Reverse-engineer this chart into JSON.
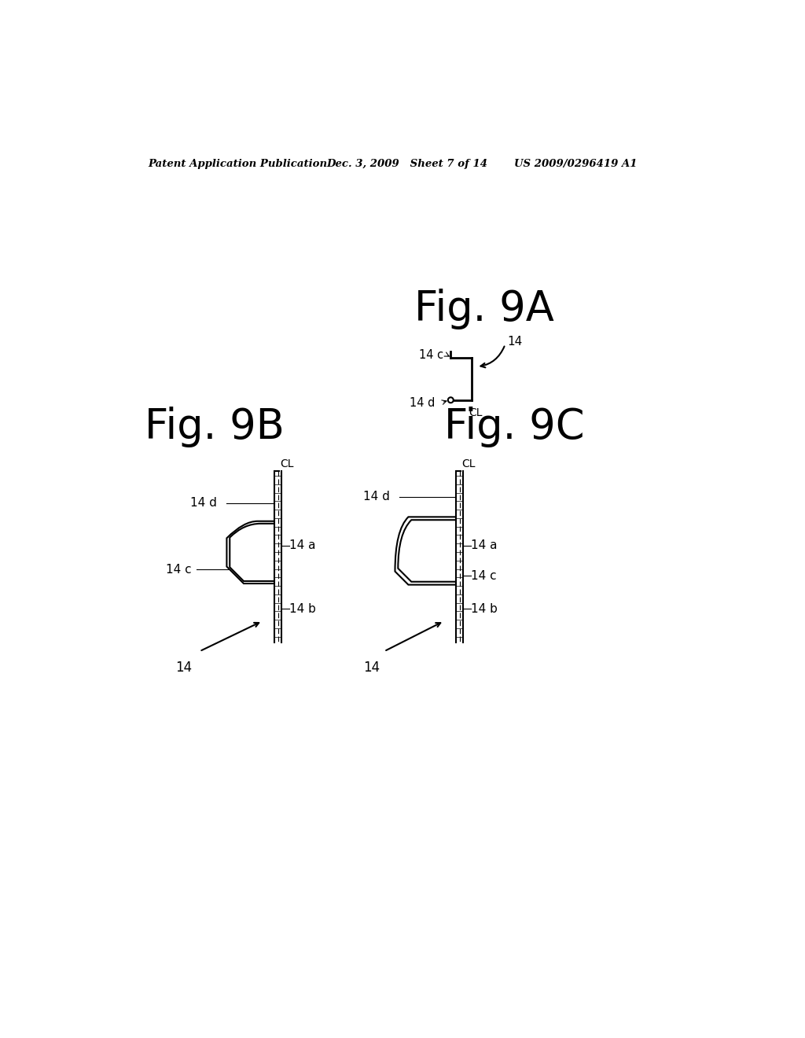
{
  "bg_color": "#ffffff",
  "text_color": "#000000",
  "header_left": "Patent Application Publication",
  "header_mid": "Dec. 3, 2009   Sheet 7 of 14",
  "header_right": "US 2009/0296419 A1",
  "fig9A_title": "Fig. 9A",
  "fig9B_title": "Fig. 9B",
  "fig9C_title": "Fig. 9C"
}
